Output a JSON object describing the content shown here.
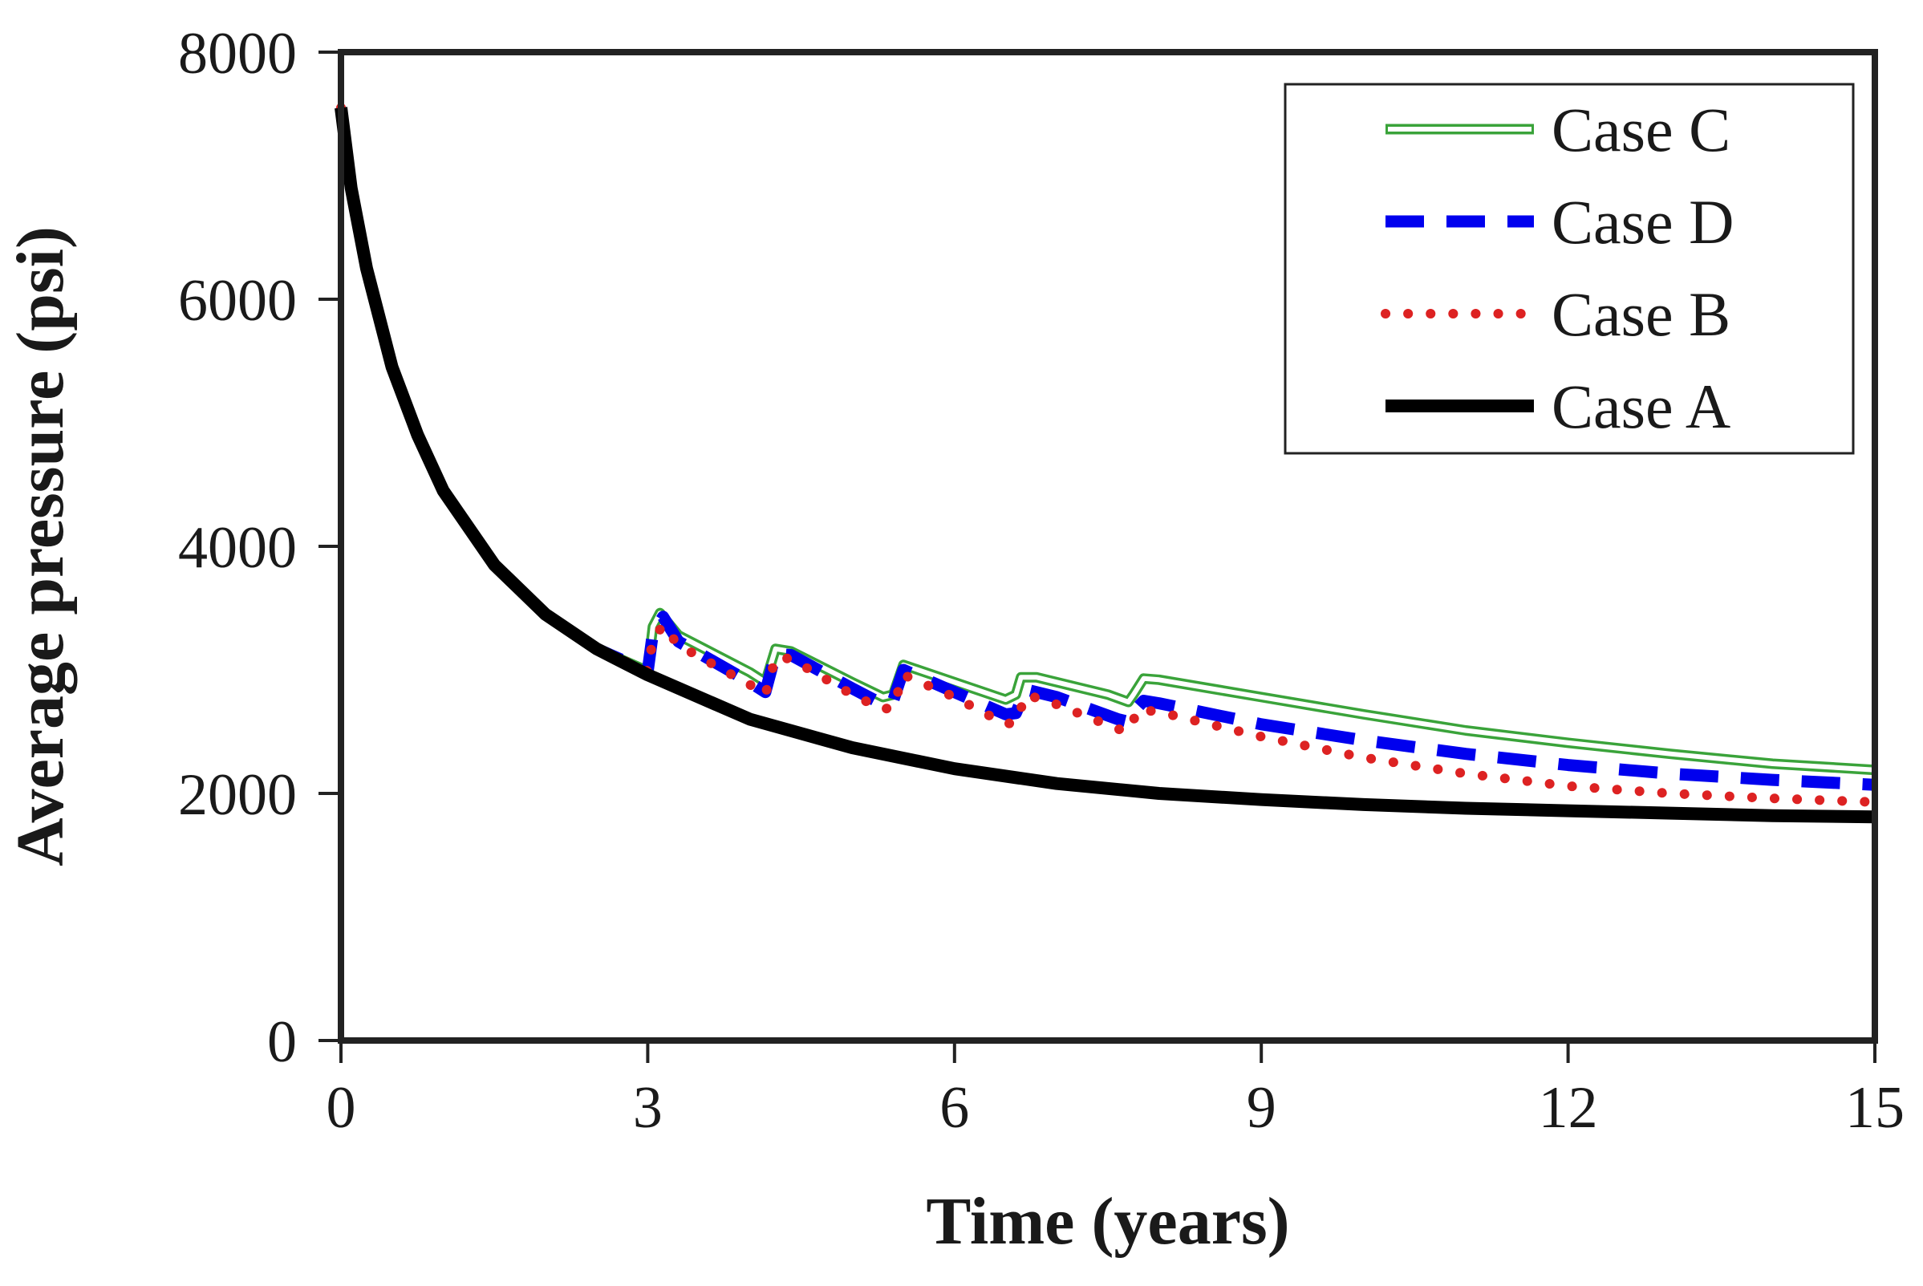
{
  "chart_data": {
    "type": "line",
    "title": "",
    "xlabel": "Time (years)",
    "ylabel": "Average pressure (psi)",
    "xlim": [
      0,
      15
    ],
    "ylim": [
      0,
      8000
    ],
    "xticks": [
      0,
      3,
      6,
      9,
      12,
      15
    ],
    "yticks": [
      0,
      2000,
      4000,
      6000,
      8000
    ],
    "grid": false,
    "legend": "top-right",
    "series": [
      {
        "name": "Case C",
        "color": "#3aa33a",
        "style": "double",
        "points": [
          [
            0,
            7550
          ],
          [
            0.1,
            6900
          ],
          [
            0.25,
            6250
          ],
          [
            0.5,
            5450
          ],
          [
            0.75,
            4900
          ],
          [
            1,
            4450
          ],
          [
            1.5,
            3850
          ],
          [
            2,
            3450
          ],
          [
            2.5,
            3170
          ],
          [
            3.0,
            2990
          ],
          [
            3.05,
            3350
          ],
          [
            3.12,
            3460
          ],
          [
            3.3,
            3280
          ],
          [
            4.0,
            2980
          ],
          [
            4.15,
            2900
          ],
          [
            4.25,
            3170
          ],
          [
            4.4,
            3150
          ],
          [
            5.0,
            2900
          ],
          [
            5.3,
            2780
          ],
          [
            5.4,
            2800
          ],
          [
            5.5,
            3040
          ],
          [
            6.0,
            2900
          ],
          [
            6.5,
            2760
          ],
          [
            6.6,
            2800
          ],
          [
            6.65,
            2940
          ],
          [
            6.8,
            2940
          ],
          [
            7.5,
            2800
          ],
          [
            7.7,
            2740
          ],
          [
            7.75,
            2800
          ],
          [
            7.85,
            2930
          ],
          [
            8.0,
            2920
          ],
          [
            9,
            2780
          ],
          [
            10,
            2640
          ],
          [
            11,
            2510
          ],
          [
            12,
            2410
          ],
          [
            13,
            2320
          ],
          [
            14,
            2240
          ],
          [
            15,
            2190
          ]
        ]
      },
      {
        "name": "Case D",
        "color": "#0000ee",
        "style": "dashed",
        "points": [
          [
            0,
            7550
          ],
          [
            0.1,
            6900
          ],
          [
            0.25,
            6250
          ],
          [
            0.5,
            5450
          ],
          [
            0.75,
            4900
          ],
          [
            1,
            4450
          ],
          [
            1.5,
            3850
          ],
          [
            2,
            3450
          ],
          [
            2.5,
            3170
          ],
          [
            3.0,
            2990
          ],
          [
            3.05,
            3300
          ],
          [
            3.15,
            3430
          ],
          [
            3.3,
            3230
          ],
          [
            4.0,
            2900
          ],
          [
            4.15,
            2820
          ],
          [
            4.25,
            3130
          ],
          [
            4.4,
            3120
          ],
          [
            5.0,
            2850
          ],
          [
            5.3,
            2720
          ],
          [
            5.4,
            2750
          ],
          [
            5.5,
            3000
          ],
          [
            6.0,
            2820
          ],
          [
            6.5,
            2640
          ],
          [
            6.6,
            2650
          ],
          [
            6.7,
            2840
          ],
          [
            7.0,
            2780
          ],
          [
            7.6,
            2600
          ],
          [
            7.7,
            2580
          ],
          [
            7.75,
            2660
          ],
          [
            7.85,
            2750
          ],
          [
            8.0,
            2730
          ],
          [
            9,
            2560
          ],
          [
            10,
            2430
          ],
          [
            11,
            2320
          ],
          [
            12,
            2230
          ],
          [
            13,
            2160
          ],
          [
            14,
            2110
          ],
          [
            15,
            2070
          ]
        ]
      },
      {
        "name": "Case B",
        "color": "#dd2222",
        "style": "dotted",
        "points": [
          [
            0,
            7550
          ],
          [
            0.1,
            6900
          ],
          [
            0.25,
            6250
          ],
          [
            0.5,
            5450
          ],
          [
            0.75,
            4900
          ],
          [
            1,
            4450
          ],
          [
            1.5,
            3850
          ],
          [
            2,
            3450
          ],
          [
            2.5,
            3170
          ],
          [
            3.0,
            2990
          ],
          [
            3.05,
            3250
          ],
          [
            3.15,
            3360
          ],
          [
            3.3,
            3200
          ],
          [
            4.0,
            2880
          ],
          [
            4.15,
            2800
          ],
          [
            4.25,
            3100
          ],
          [
            4.4,
            3090
          ],
          [
            5.0,
            2800
          ],
          [
            5.3,
            2680
          ],
          [
            5.4,
            2700
          ],
          [
            5.5,
            2960
          ],
          [
            6.0,
            2780
          ],
          [
            6.5,
            2560
          ],
          [
            6.6,
            2580
          ],
          [
            6.7,
            2800
          ],
          [
            7.0,
            2720
          ],
          [
            7.6,
            2520
          ],
          [
            7.7,
            2510
          ],
          [
            7.8,
            2680
          ],
          [
            8.0,
            2660
          ],
          [
            9,
            2460
          ],
          [
            10,
            2290
          ],
          [
            11,
            2160
          ],
          [
            12,
            2060
          ],
          [
            13,
            2000
          ],
          [
            14,
            1960
          ],
          [
            15,
            1930
          ]
        ]
      },
      {
        "name": "Case A",
        "color": "#000000",
        "style": "solid-thick",
        "points": [
          [
            0,
            7550
          ],
          [
            0.1,
            6900
          ],
          [
            0.25,
            6250
          ],
          [
            0.5,
            5450
          ],
          [
            0.75,
            4900
          ],
          [
            1,
            4450
          ],
          [
            1.5,
            3850
          ],
          [
            2,
            3450
          ],
          [
            2.5,
            3170
          ],
          [
            3,
            2960
          ],
          [
            4,
            2600
          ],
          [
            5,
            2370
          ],
          [
            6,
            2200
          ],
          [
            7,
            2080
          ],
          [
            8,
            2000
          ],
          [
            9,
            1950
          ],
          [
            10,
            1910
          ],
          [
            11,
            1880
          ],
          [
            12,
            1860
          ],
          [
            13,
            1840
          ],
          [
            14,
            1820
          ],
          [
            15,
            1810
          ]
        ]
      }
    ]
  }
}
